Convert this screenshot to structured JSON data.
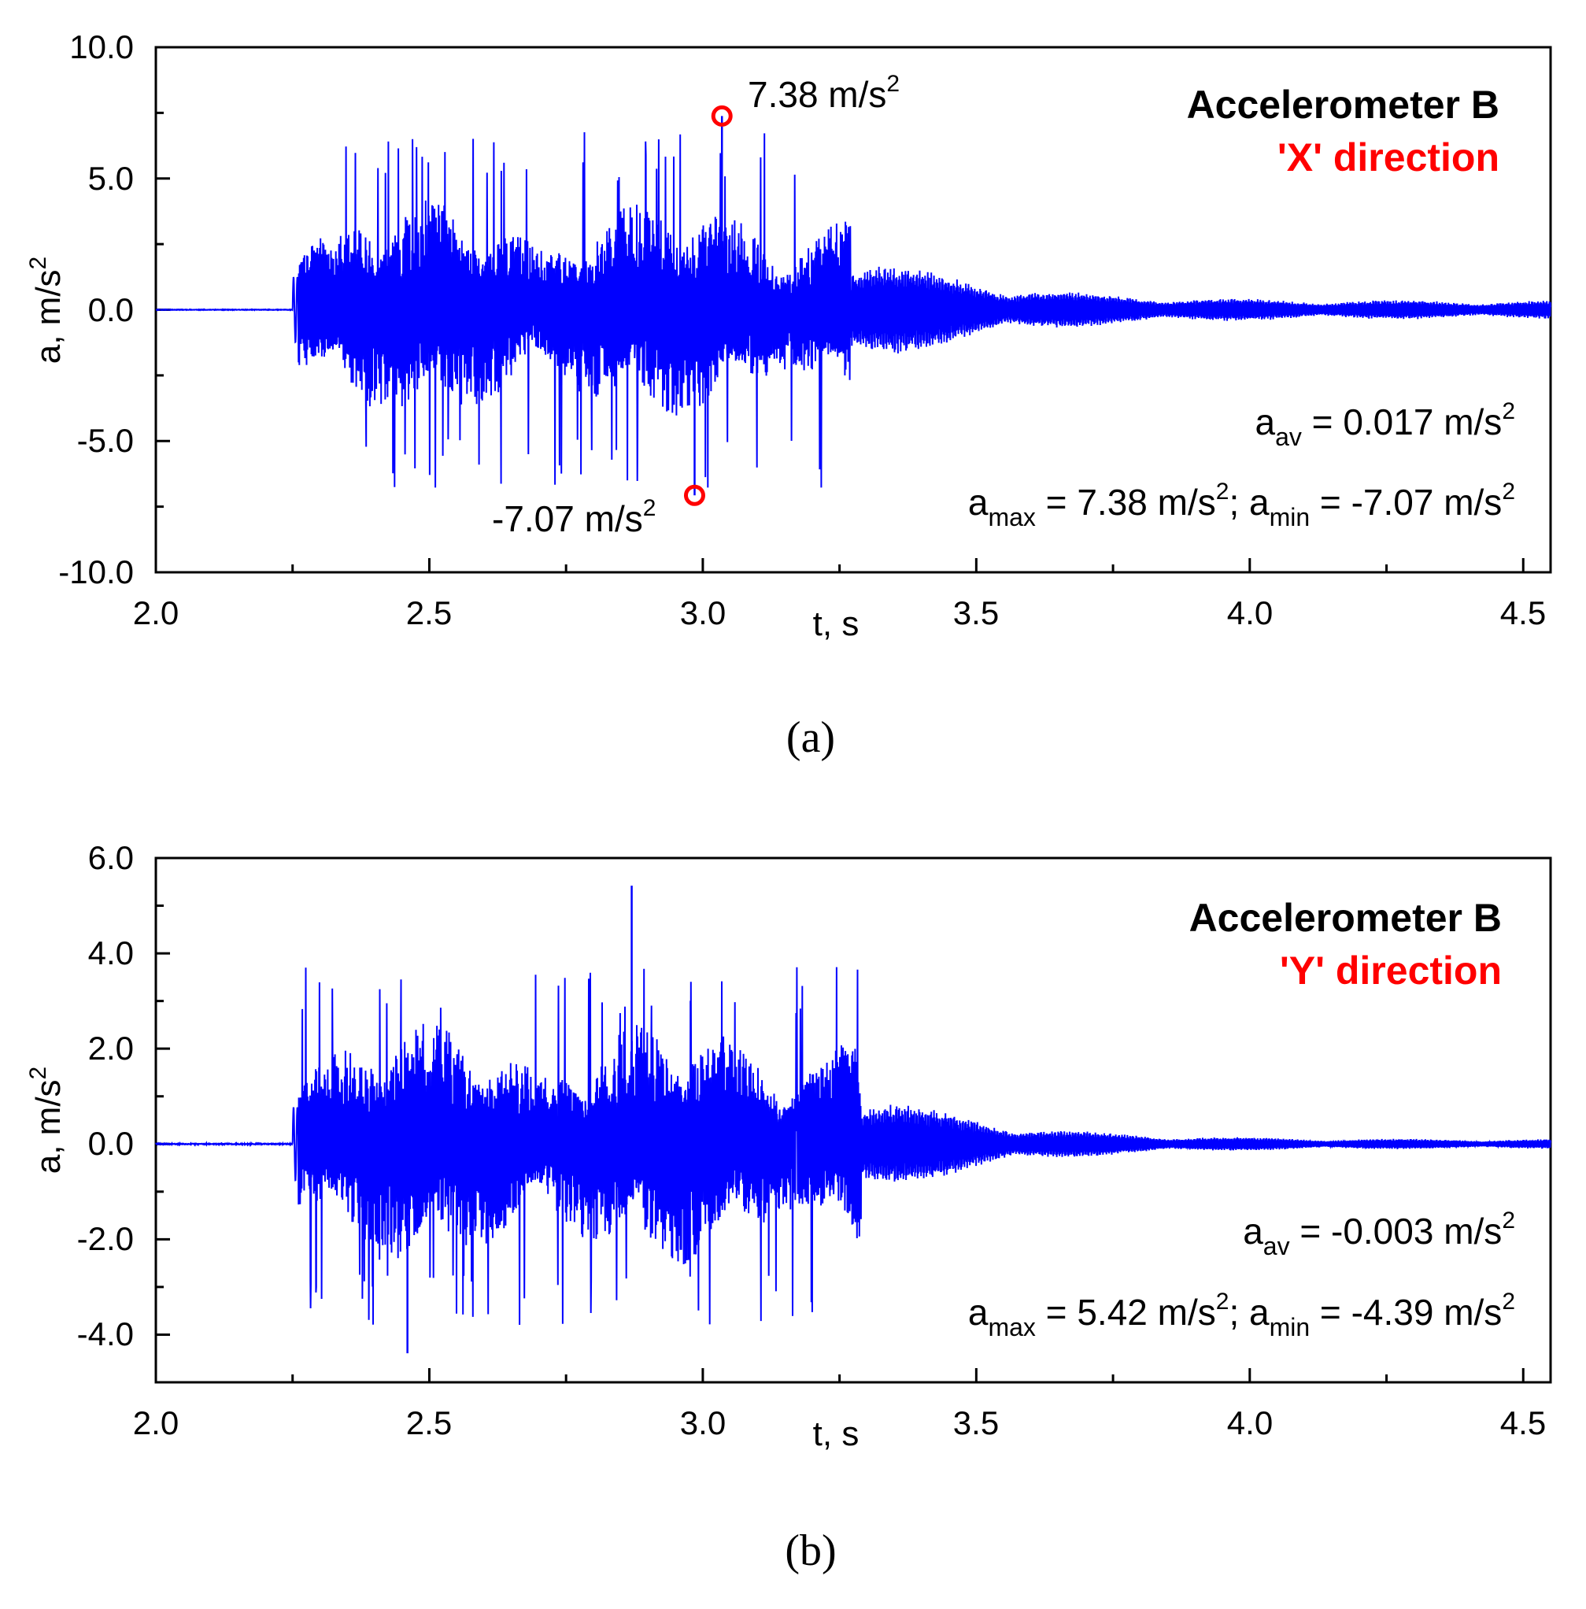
{
  "chart_data": [
    {
      "type": "line",
      "panel_label": "(a)",
      "title_line1": "Accelerometer B",
      "title_line2": "'X' direction",
      "title_color_line1": "#000000",
      "title_color_line2": "#ff0000",
      "series_color": "#0000ff",
      "marker_color": "#ff0000",
      "xlabel": "t, s",
      "ylabel_main": "a, m/s",
      "ylabel_sup": "2",
      "xlim": [
        2.0,
        4.55
      ],
      "ylim": [
        -10.0,
        10.0
      ],
      "xticks": [
        "2.0",
        "2.5",
        "3.0",
        "3.5",
        "4.0",
        "4.5"
      ],
      "xtick_values": [
        2.0,
        2.5,
        3.0,
        3.5,
        4.0,
        4.5
      ],
      "yticks": [
        "10.0",
        "5.0",
        "0.0",
        "-5.0",
        "-10.0"
      ],
      "ytick_values": [
        10.0,
        5.0,
        0.0,
        -5.0,
        -10.0
      ],
      "signal": {
        "quiet_until": 2.25,
        "burst_start": 2.26,
        "strong_end": 3.27,
        "decay_end": 4.55,
        "strong_amplitude": 4.2,
        "spike_amplitude": 6.8,
        "decay_amplitude": 2.6,
        "tail_amplitude": 0.35,
        "seed": 11
      },
      "max_point": {
        "t": 3.035,
        "a": 7.38,
        "label_value": "7.38 m/s",
        "label_sup": "2"
      },
      "min_point": {
        "t": 2.985,
        "a": -7.07,
        "label_value": "-7.07 m/s",
        "label_sup": "2"
      },
      "stats": {
        "a_sym": "a",
        "av_sub": "av",
        "av_value": " = 0.017 m/s",
        "av_sup": "2",
        "max_sub": "max",
        "max_value": " = 7.38 m/s",
        "max_sup": "2",
        "sep": "; a",
        "min_sub": "min",
        "min_value": " = -7.07 m/s",
        "min_sup": "2"
      }
    },
    {
      "type": "line",
      "panel_label": "(b)",
      "title_line1": "Accelerometer B",
      "title_line2": "'Y' direction",
      "title_color_line1": "#000000",
      "title_color_line2": "#ff0000",
      "series_color": "#0000ff",
      "xlabel": "t, s",
      "ylabel_main": "a, m/s",
      "ylabel_sup": "2",
      "xlim": [
        2.0,
        4.55
      ],
      "ylim": [
        -5.0,
        6.0
      ],
      "xticks": [
        "2.0",
        "2.5",
        "3.0",
        "3.5",
        "4.0",
        "4.5"
      ],
      "xtick_values": [
        2.0,
        2.5,
        3.0,
        3.5,
        4.0,
        4.5
      ],
      "yticks": [
        "6.0",
        "4.0",
        "2.0",
        "0.0",
        "-2.0",
        "-4.0"
      ],
      "ytick_values": [
        6.0,
        4.0,
        2.0,
        0.0,
        -2.0,
        -4.0
      ],
      "signal": {
        "quiet_until": 2.25,
        "burst_start": 2.26,
        "strong_end": 3.29,
        "decay_end": 4.55,
        "strong_amplitude": 2.6,
        "spike_amplitude": 3.9,
        "decay_amplitude": 1.3,
        "tail_amplitude": 0.1,
        "seed": 29
      },
      "max_point": {
        "t": 2.87,
        "a": 5.42
      },
      "min_point": {
        "t": 2.46,
        "a": -4.39
      },
      "stats": {
        "a_sym": "a",
        "av_sub": "av",
        "av_value": " = -0.003 m/s",
        "av_sup": "2",
        "max_sub": "max",
        "max_value": " = 5.42 m/s",
        "max_sup": "2",
        "sep": "; a",
        "min_sub": "min",
        "min_value": " = -4.39 m/s",
        "min_sup": "2"
      }
    }
  ]
}
